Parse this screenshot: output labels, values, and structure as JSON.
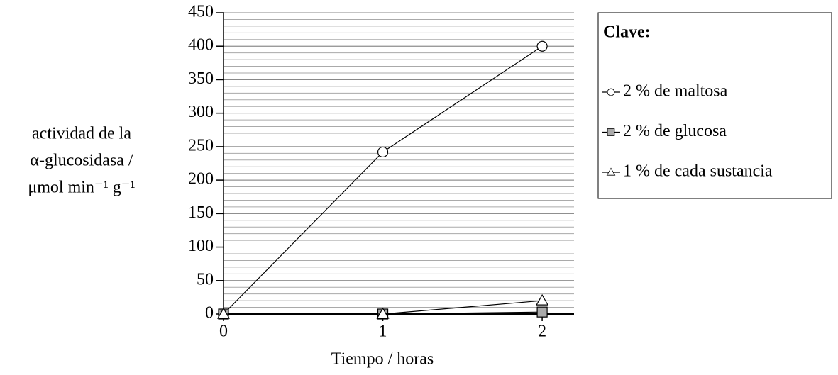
{
  "chart_data": {
    "type": "line",
    "x": [
      0,
      1,
      2
    ],
    "xlim": [
      0,
      2.2
    ],
    "xticks": [
      0,
      1,
      2
    ],
    "ylim": [
      0,
      450
    ],
    "yticks": [
      0,
      50,
      100,
      150,
      200,
      250,
      300,
      350,
      400,
      450
    ],
    "minor_grid_step": 10,
    "grid": true,
    "xlabel": "Tiempo / horas",
    "ylabel": [
      "actividad de la",
      "α-glucosidasa /",
      "μmol min⁻¹ g⁻¹"
    ],
    "legend_title": "Clave:",
    "legend_position": "right",
    "series": [
      {
        "name": "2 % de maltosa",
        "color": "#000000",
        "marker": "circle",
        "marker_fill": "#ffffff",
        "values": [
          0,
          242,
          400
        ]
      },
      {
        "name": "2 % de glucosa",
        "color": "#000000",
        "marker": "square",
        "marker_fill": "#aaaaaa",
        "values": [
          0,
          0,
          3
        ]
      },
      {
        "name": "1 % de cada sustancia",
        "color": "#000000",
        "marker": "triangle",
        "marker_fill": "#ffffff",
        "values": [
          0,
          0,
          20
        ]
      }
    ]
  }
}
